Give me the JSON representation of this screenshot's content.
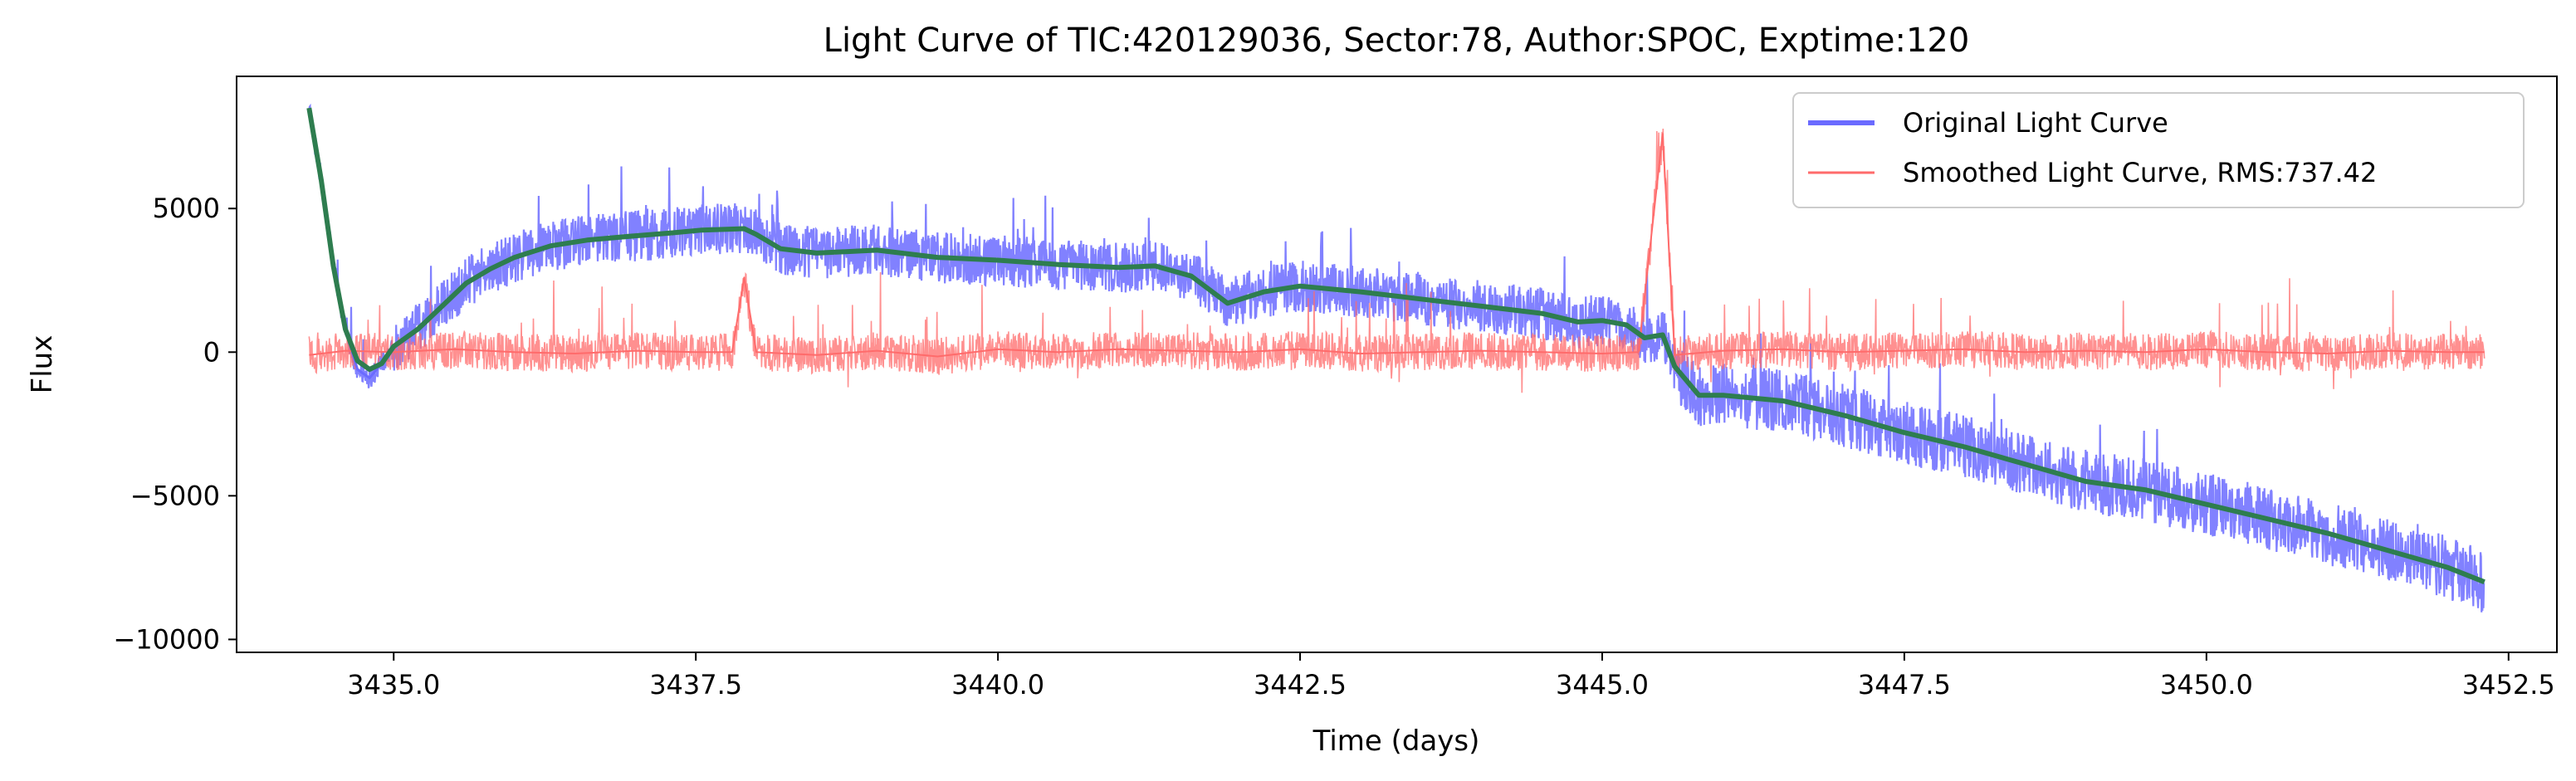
{
  "chart_data": {
    "type": "line",
    "title": "Light Curve of TIC:420129036, Sector:78, Author:SPOC, Exptime:120",
    "xlabel": "Time (days)",
    "ylabel": "Flux",
    "xlim": [
      3433.7,
      3452.9
    ],
    "ylim": [
      -10450,
      9600
    ],
    "xticks": [
      3435.0,
      3437.5,
      3440.0,
      3442.5,
      3445.0,
      3447.5,
      3450.0,
      3452.5
    ],
    "xtick_labels": [
      "3435.0",
      "3437.5",
      "3440.0",
      "3442.5",
      "3445.0",
      "3447.5",
      "3450.0",
      "3452.5"
    ],
    "yticks": [
      -10000,
      -5000,
      0,
      5000
    ],
    "ytick_labels": [
      "−10000",
      "−5000",
      "0",
      "5000"
    ],
    "grid": false,
    "legend_position": "top-right",
    "colors": {
      "original": "#6b6bff",
      "smoothed": "#ff6b6b",
      "trend": "#2e7d4f"
    },
    "series": [
      {
        "name": "Original Light Curve",
        "key": "original",
        "x": [
          3434.3,
          3434.4,
          3434.5,
          3434.6,
          3434.7,
          3434.8,
          3434.9,
          3435.0,
          3435.2,
          3435.4,
          3435.6,
          3435.8,
          3436.0,
          3436.3,
          3436.6,
          3437.0,
          3437.3,
          3437.55,
          3437.9,
          3438.0,
          3438.2,
          3438.5,
          3439.0,
          3439.5,
          3440.0,
          3440.5,
          3441.0,
          3441.3,
          3441.6,
          3441.9,
          3442.2,
          3442.5,
          3443.0,
          3443.5,
          3444.0,
          3444.5,
          3444.8,
          3445.0,
          3445.2,
          3445.35,
          3445.5,
          3445.6,
          3445.8,
          3446.0,
          3446.5,
          3447.0,
          3447.5,
          3448.0,
          3448.5,
          3449.0,
          3449.5,
          3450.0,
          3450.5,
          3451.0,
          3451.5,
          3452.0,
          3452.3
        ],
        "y": [
          8500,
          6000,
          3000,
          800,
          -600,
          -900,
          -400,
          200,
          800,
          1600,
          2400,
          2900,
          3300,
          3700,
          3900,
          4050,
          4150,
          4250,
          4300,
          4100,
          3600,
          3450,
          3550,
          3300,
          3200,
          3050,
          2950,
          3000,
          2650,
          1700,
          2100,
          2300,
          2100,
          1850,
          1600,
          1350,
          1050,
          1100,
          950,
          500,
          600,
          -500,
          -1500,
          -1500,
          -1700,
          -2200,
          -2800,
          -3300,
          -3900,
          -4500,
          -4800,
          -5300,
          -5800,
          -6300,
          -6900,
          -7500,
          -8000
        ]
      },
      {
        "name": "Smoothed Light Curve, RMS:737.42",
        "key": "smoothed",
        "x": [
          3434.3,
          3434.6,
          3435.0,
          3435.5,
          3436.0,
          3436.5,
          3437.0,
          3437.5,
          3437.8,
          3437.9,
          3438.0,
          3438.5,
          3439.0,
          3439.5,
          3440.0,
          3440.5,
          3441.0,
          3441.5,
          3442.0,
          3442.5,
          3443.0,
          3443.5,
          3444.0,
          3444.5,
          3445.0,
          3445.3,
          3445.5,
          3445.6,
          3446.0,
          3446.5,
          3447.0,
          3447.5,
          3448.0,
          3448.5,
          3449.0,
          3449.5,
          3450.0,
          3450.5,
          3451.0,
          3451.5,
          3452.0,
          3452.3
        ],
        "y": [
          -100,
          50,
          0,
          100,
          0,
          -50,
          50,
          0,
          0,
          2600,
          0,
          -100,
          50,
          -150,
          100,
          0,
          100,
          50,
          0,
          100,
          -50,
          0,
          50,
          0,
          -50,
          0,
          7600,
          -100,
          50,
          100,
          0,
          50,
          100,
          0,
          50,
          0,
          100,
          0,
          -50,
          50,
          0,
          0
        ]
      },
      {
        "name": "",
        "key": "trend",
        "x": [
          3434.3,
          3434.4,
          3434.5,
          3434.6,
          3434.7,
          3434.8,
          3434.9,
          3435.0,
          3435.2,
          3435.4,
          3435.6,
          3435.8,
          3436.0,
          3436.3,
          3436.6,
          3437.0,
          3437.3,
          3437.55,
          3437.9,
          3438.0,
          3438.2,
          3438.5,
          3439.0,
          3439.5,
          3440.0,
          3440.5,
          3441.0,
          3441.3,
          3441.6,
          3441.9,
          3442.2,
          3442.5,
          3443.0,
          3443.5,
          3444.0,
          3444.5,
          3444.8,
          3445.0,
          3445.2,
          3445.35,
          3445.5,
          3445.6,
          3445.8,
          3446.0,
          3446.5,
          3447.0,
          3447.5,
          3448.0,
          3448.5,
          3449.0,
          3449.5,
          3450.0,
          3450.5,
          3451.0,
          3451.5,
          3452.0,
          3452.3
        ],
        "y": [
          8500,
          6000,
          3000,
          800,
          -300,
          -600,
          -400,
          200,
          800,
          1600,
          2400,
          2900,
          3300,
          3700,
          3900,
          4050,
          4150,
          4250,
          4300,
          4100,
          3600,
          3450,
          3550,
          3300,
          3200,
          3050,
          2950,
          3000,
          2650,
          1700,
          2100,
          2300,
          2100,
          1850,
          1600,
          1350,
          1050,
          1100,
          950,
          500,
          600,
          -500,
          -1500,
          -1500,
          -1700,
          -2200,
          -2800,
          -3300,
          -3900,
          -4500,
          -4800,
          -5300,
          -5800,
          -6300,
          -6900,
          -7500,
          -8000
        ]
      }
    ]
  }
}
